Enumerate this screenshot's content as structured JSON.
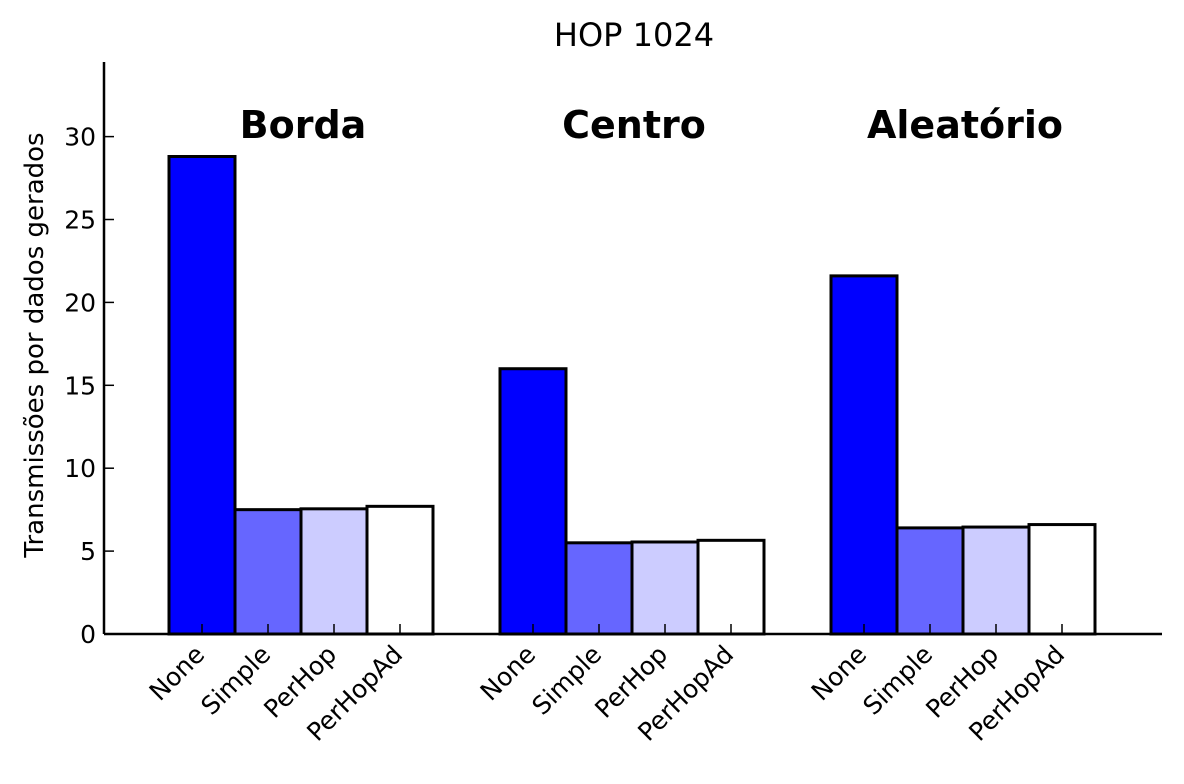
{
  "chart_data": {
    "type": "bar",
    "title": "HOP 1024",
    "ylabel": "Transmissões por dados gerados",
    "xlabel": "",
    "ylim": [
      0,
      34.5
    ],
    "yticks": [
      0,
      5,
      10,
      15,
      20,
      25,
      30
    ],
    "grid": false,
    "groups": [
      "Borda",
      "Centro",
      "Aleatório"
    ],
    "categories": [
      "None",
      "Simple",
      "PerHop",
      "PerHopAd"
    ],
    "colors": [
      "#0000ff",
      "#6666ff",
      "#ccccff",
      "#ffffff"
    ],
    "series": [
      {
        "group": "Borda",
        "values": [
          28.8,
          7.5,
          7.55,
          7.7
        ]
      },
      {
        "group": "Centro",
        "values": [
          16.0,
          5.5,
          5.55,
          5.65
        ]
      },
      {
        "group": "Aleatório",
        "values": [
          21.6,
          6.4,
          6.45,
          6.6
        ]
      }
    ]
  }
}
